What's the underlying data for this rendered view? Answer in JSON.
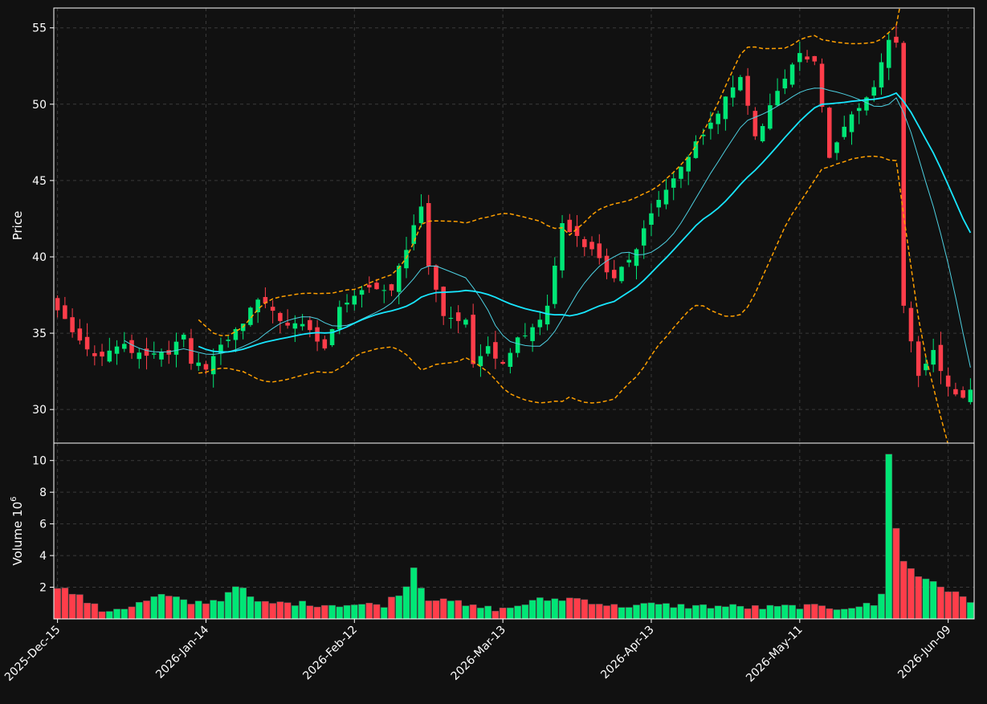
{
  "chart_data": {
    "type": "candlestick",
    "background": "#111111",
    "colors": {
      "up": "#00e676",
      "down": "#ff3d4a",
      "sma_fast": "#4dd0e1",
      "sma_slow": "#18e6ff",
      "bollinger": "#ffa000",
      "grid": "#3a3a3a",
      "axis": "#ffffff"
    },
    "price_panel": {
      "ylabel": "Price",
      "ylim": [
        27.8,
        56.3
      ],
      "yticks": [
        30,
        35,
        40,
        45,
        50,
        55
      ]
    },
    "volume_panel": {
      "ylabel": "Volume",
      "ylabel_exp": "10",
      "ylabel_sup": "6",
      "ylim": [
        0,
        11.1
      ],
      "yticks": [
        2,
        4,
        6,
        8,
        10
      ]
    },
    "x_axis": {
      "n_bars": 124,
      "ticks": [
        {
          "index": 0,
          "label": "2025-Dec-15"
        },
        {
          "index": 20,
          "label": "2026-Jan-14"
        },
        {
          "index": 40,
          "label": "2026-Feb-12"
        },
        {
          "index": 60,
          "label": "2026-Mar-13"
        },
        {
          "index": 80,
          "label": "2026-Apr-13"
        },
        {
          "index": 100,
          "label": "2026-May-11"
        },
        {
          "index": 120,
          "label": "2026-Jun-09"
        }
      ]
    },
    "candle_anchors": [
      [
        0,
        36.5
      ],
      [
        5,
        33.2
      ],
      [
        9,
        34.3
      ],
      [
        11,
        33.5
      ],
      [
        15,
        33.6
      ],
      [
        17,
        35.0
      ],
      [
        18,
        33.0
      ],
      [
        20,
        32.8
      ],
      [
        22,
        34.2
      ],
      [
        25,
        35.8
      ],
      [
        27,
        37.2
      ],
      [
        30,
        35.8
      ],
      [
        33,
        35.6
      ],
      [
        36,
        34.0
      ],
      [
        38,
        36.8
      ],
      [
        40,
        37.2
      ],
      [
        42,
        38.0
      ],
      [
        45,
        37.8
      ],
      [
        49,
        43.5
      ],
      [
        50,
        39.5
      ],
      [
        52,
        36.2
      ],
      [
        55,
        35.6
      ],
      [
        56,
        33.0
      ],
      [
        58,
        34.0
      ],
      [
        60,
        33.0
      ],
      [
        62,
        34.5
      ],
      [
        64,
        35.2
      ],
      [
        66,
        36.8
      ],
      [
        68,
        42.0
      ],
      [
        72,
        40.5
      ],
      [
        75,
        38.6
      ],
      [
        78,
        40.5
      ],
      [
        80,
        43.0
      ],
      [
        83,
        45.2
      ],
      [
        87,
        48.0
      ],
      [
        90,
        50.5
      ],
      [
        92,
        52.0
      ],
      [
        94,
        47.8
      ],
      [
        97,
        51.0
      ],
      [
        100,
        53.4
      ],
      [
        102,
        52.8
      ],
      [
        104,
        46.5
      ],
      [
        106,
        48.5
      ],
      [
        110,
        51.0
      ],
      [
        112,
        54.5
      ],
      [
        113,
        54.0
      ],
      [
        114,
        36.8
      ],
      [
        116,
        32.2
      ],
      [
        118,
        33.8
      ],
      [
        120,
        31.5
      ],
      [
        122,
        30.5
      ],
      [
        123,
        31.3
      ]
    ],
    "volume_anchors": [
      [
        0,
        2.1
      ],
      [
        3,
        1.4
      ],
      [
        6,
        0.5
      ],
      [
        10,
        0.8
      ],
      [
        14,
        1.5
      ],
      [
        18,
        1.0
      ],
      [
        22,
        1.2
      ],
      [
        24,
        2.2
      ],
      [
        27,
        1.0
      ],
      [
        32,
        1.0
      ],
      [
        36,
        0.9
      ],
      [
        40,
        0.9
      ],
      [
        44,
        0.9
      ],
      [
        47,
        2.0
      ],
      [
        48,
        3.4
      ],
      [
        49,
        2.0
      ],
      [
        50,
        1.2
      ],
      [
        52,
        1.4
      ],
      [
        55,
        0.8
      ],
      [
        60,
        0.6
      ],
      [
        65,
        1.2
      ],
      [
        70,
        1.3
      ],
      [
        75,
        0.8
      ],
      [
        80,
        0.9
      ],
      [
        85,
        0.8
      ],
      [
        90,
        0.8
      ],
      [
        95,
        0.7
      ],
      [
        100,
        0.8
      ],
      [
        105,
        0.7
      ],
      [
        110,
        0.9
      ],
      [
        111,
        1.5
      ],
      [
        112,
        10.5
      ],
      [
        113,
        5.8
      ],
      [
        114,
        3.6
      ],
      [
        116,
        2.7
      ],
      [
        118,
        2.4
      ],
      [
        120,
        1.8
      ],
      [
        123,
        1.1
      ]
    ],
    "sma_fast_period": 10,
    "sma_slow_period": 20,
    "bollinger_period": 20,
    "bollinger_k": 2
  }
}
